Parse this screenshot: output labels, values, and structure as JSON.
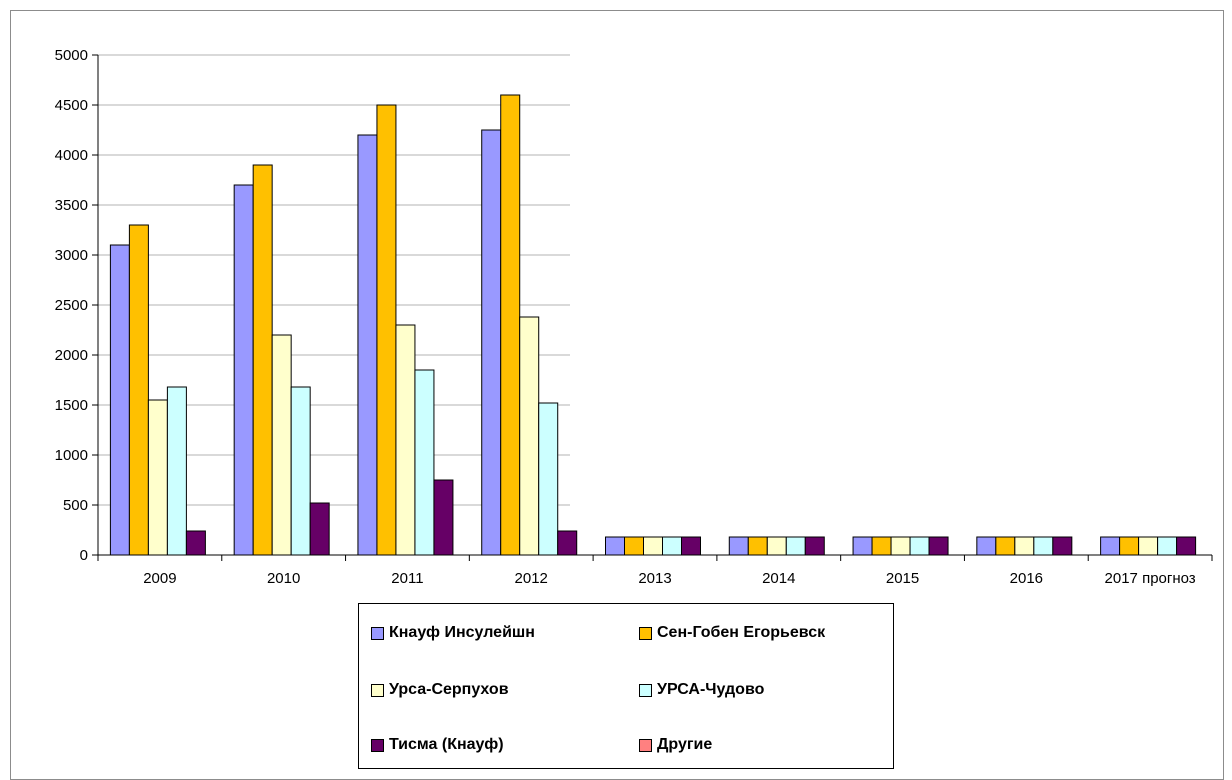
{
  "chart_data": {
    "type": "bar",
    "title": "",
    "xlabel": "",
    "ylabel": "",
    "categories": [
      "2009",
      "2010",
      "2011",
      "2012",
      "2013",
      "2014",
      "2015",
      "2016",
      "2017 прогноз"
    ],
    "ylim": [
      0,
      5000
    ],
    "yticks": [
      0,
      500,
      1000,
      1500,
      2000,
      2500,
      3000,
      3500,
      4000,
      4500,
      5000
    ],
    "grid": true,
    "legend_position": "bottom",
    "series": [
      {
        "name": "Кнауф  Инсулейшн",
        "color": "#9999ff",
        "values": [
          3100,
          3700,
          4200,
          4250,
          180,
          180,
          180,
          180,
          180
        ]
      },
      {
        "name": "Сен-Гобен Егорьевск",
        "color": "#ffc000",
        "values": [
          3300,
          3900,
          4500,
          4600,
          180,
          180,
          180,
          180,
          180
        ]
      },
      {
        "name": "Урса-Серпухов",
        "color": "#ffffcc",
        "values": [
          1550,
          2200,
          2300,
          2380,
          180,
          180,
          180,
          180,
          180
        ]
      },
      {
        "name": "УРСА-Чудово",
        "color": "#ccffff",
        "values": [
          1680,
          1680,
          1850,
          1520,
          180,
          180,
          180,
          180,
          180
        ]
      },
      {
        "name": "Тисма (Кнауф)",
        "color": "#660066",
        "values": [
          240,
          520,
          750,
          240,
          180,
          180,
          180,
          180,
          180
        ]
      },
      {
        "name": "Другие",
        "color": "#ff8080",
        "values": [
          0,
          0,
          0,
          0,
          0,
          0,
          0,
          0,
          0
        ]
      }
    ]
  }
}
